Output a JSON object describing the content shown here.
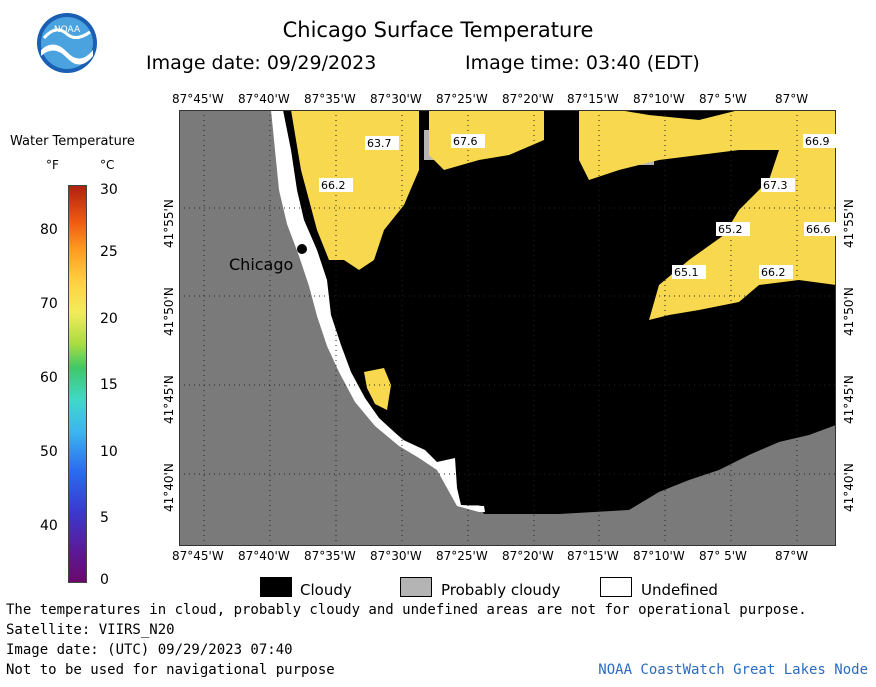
{
  "header": {
    "title": "Chicago Surface Temperature",
    "image_date": "Image date: 09/29/2023",
    "image_time": "Image time: 03:40 (EDT)"
  },
  "logo": {
    "text": "NOAA",
    "icon": "noaa-logo-icon"
  },
  "legend": {
    "title": "Water Temperature",
    "unit_f": "°F",
    "unit_c": "°C",
    "f_ticks": [
      "80",
      "70",
      "60",
      "50",
      "40"
    ],
    "c_ticks": [
      "30",
      "25",
      "20",
      "15",
      "10",
      "5",
      "0"
    ]
  },
  "map": {
    "lon_labels": [
      "87°45'W",
      "87°40'W",
      "87°35'W",
      "87°30'W",
      "87°25'W",
      "87°20'W",
      "87°15'W",
      "87°10'W",
      "87° 5'W",
      "87°W"
    ],
    "lat_labels": [
      "41°55'N",
      "41°50'N",
      "41°45'N",
      "41°40'N"
    ],
    "city": "Chicago",
    "temps": [
      "63.7",
      "67.6",
      "66.2",
      "66.9",
      "67.3",
      "65.2",
      "66.6",
      "65.1",
      "66.2"
    ],
    "colors": {
      "land": "#7a7a7a",
      "cloud": "#000000",
      "water_warm": "#f7d84e",
      "probably_cloudy": "#b4b4b4"
    }
  },
  "key": {
    "cloudy": "Cloudy",
    "probably_cloudy": "Probably cloudy",
    "undefined": "Undefined"
  },
  "footer": {
    "line1": "The temperatures in cloud, probably cloudy and undefined areas are not for operational purpose.",
    "line2": "Satellite: VIIRS_N20",
    "line3": "Image date: (UTC) 09/29/2023  07:40",
    "line4": "Not to be used for navigational purpose",
    "credit": "NOAA CoastWatch Great Lakes Node"
  }
}
